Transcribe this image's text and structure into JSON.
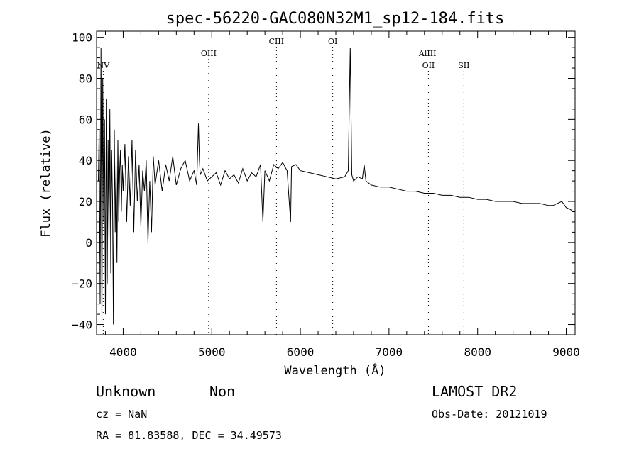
{
  "chart_data": {
    "type": "line",
    "title": "spec-56220-GAC080N32M1_sp12-184.fits",
    "xlabel": "Wavelength (Å)",
    "ylabel": "Flux (relative)",
    "xlim": [
      3700,
      9100
    ],
    "ylim": [
      -45,
      103
    ],
    "xticks": [
      4000,
      5000,
      6000,
      7000,
      8000,
      9000
    ],
    "xtick_labels": [
      "4000",
      "5000",
      "6000",
      "7000",
      "8000",
      "9000"
    ],
    "yticks": [
      -40,
      -20,
      0,
      20,
      40,
      60,
      80,
      100
    ],
    "ytick_labels": [
      "−40",
      "−20",
      "0",
      "20",
      "40",
      "60",
      "80",
      "100"
    ],
    "grid": false,
    "lines": [
      {
        "label": "NV",
        "x": 3775
      },
      {
        "label": "OIII",
        "x": 4965
      },
      {
        "label": "CIII",
        "x": 5730
      },
      {
        "label": "OI",
        "x": 6365
      },
      {
        "label": "AlIII",
        "x": 7435
      },
      {
        "label": "OII",
        "x": 7445
      },
      {
        "label": "SII",
        "x": 7845
      }
    ],
    "series": [
      {
        "x": [
          3720,
          3730,
          3740,
          3750,
          3760,
          3770,
          3780,
          3790,
          3800,
          3810,
          3820,
          3830,
          3840,
          3850,
          3860,
          3870,
          3880,
          3890,
          3900,
          3910,
          3920,
          3930,
          3940,
          3950,
          3960,
          3970,
          3980,
          3990,
          4000,
          4020,
          4040,
          4060,
          4080,
          4100,
          4120,
          4140,
          4160,
          4180,
          4200,
          4220,
          4240,
          4260,
          4280,
          4300,
          4320,
          4340,
          4360,
          4400,
          4440,
          4480,
          4520,
          4560,
          4600,
          4650,
          4700,
          4750,
          4800,
          4830,
          4850,
          4861,
          4870,
          4900,
          4950,
          5000,
          5050,
          5100,
          5150,
          5200,
          5250,
          5300,
          5350,
          5400,
          5450,
          5500,
          5550,
          5577,
          5600,
          5650,
          5700,
          5750,
          5800,
          5850,
          5890,
          5900,
          5950,
          6000,
          6100,
          6200,
          6300,
          6400,
          6500,
          6540,
          6563,
          6580,
          6600,
          6650,
          6700,
          6720,
          6740,
          6800,
          6900,
          7000,
          7100,
          7200,
          7300,
          7400,
          7500,
          7600,
          7700,
          7800,
          7900,
          8000,
          8100,
          8200,
          8300,
          8400,
          8500,
          8600,
          8700,
          8800,
          8850,
          8900,
          8950,
          9000,
          9050,
          9080
        ],
        "y": [
          30,
          55,
          -30,
          95,
          -40,
          80,
          10,
          60,
          -35,
          70,
          -20,
          50,
          0,
          65,
          -15,
          45,
          20,
          -40,
          55,
          5,
          40,
          -10,
          50,
          10,
          35,
          45,
          15,
          38,
          25,
          48,
          10,
          42,
          18,
          50,
          5,
          45,
          20,
          38,
          8,
          35,
          25,
          40,
          0,
          30,
          5,
          42,
          28,
          40,
          25,
          38,
          30,
          42,
          28,
          36,
          40,
          30,
          35,
          28,
          58,
          40,
          33,
          36,
          30,
          32,
          34,
          28,
          35,
          31,
          33,
          29,
          36,
          30,
          34,
          32,
          38,
          10,
          35,
          30,
          38,
          36,
          39,
          35,
          10,
          37,
          38,
          35,
          34,
          33,
          32,
          31,
          32,
          35,
          95,
          33,
          30,
          32,
          31,
          38,
          30,
          28,
          27,
          27,
          26,
          25,
          25,
          24,
          24,
          23,
          23,
          22,
          22,
          21,
          21,
          20,
          20,
          20,
          19,
          19,
          19,
          18,
          18,
          19,
          20,
          17,
          16,
          15
        ]
      }
    ]
  },
  "footer": {
    "object_class": "Unknown",
    "subclass": "Non",
    "cz": "cz = NaN",
    "coords": "RA =  81.83588, DEC =  34.49573",
    "survey": "LAMOST DR2",
    "obs_date": "Obs-Date: 20121019"
  },
  "colors": {
    "ink": "#000000",
    "background": "#ffffff"
  }
}
